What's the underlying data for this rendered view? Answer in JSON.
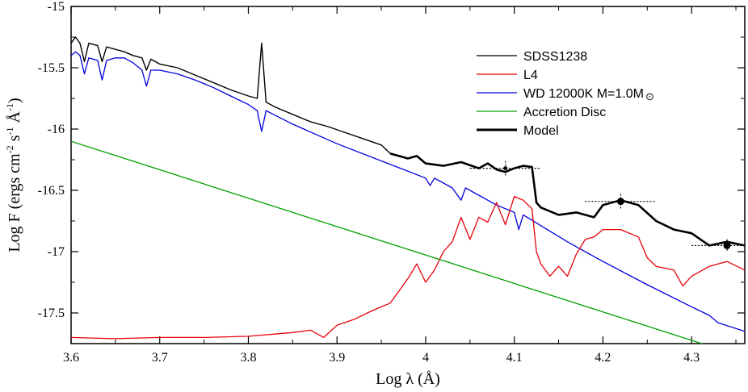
{
  "chart_data": {
    "type": "line",
    "title": "",
    "xlabel_prefix": "Log ",
    "xlabel_symbol": "λ",
    "xlabel_unit": " (Å)",
    "ylabel_main": "Log F (ergs  cm",
    "ylabel_sup1": "-2",
    "ylabel_mid1": " s",
    "ylabel_sup2": "-1",
    "ylabel_mid2": " Å",
    "ylabel_sup3": "-1",
    "ylabel_end": ")",
    "xlim": [
      3.6,
      4.36
    ],
    "ylim": [
      -17.75,
      -15
    ],
    "xticks": [
      "3.6",
      "3.7",
      "3.8",
      "3.9",
      "4",
      "4.1",
      "4.2",
      "4.3"
    ],
    "xtick_values": [
      3.6,
      3.7,
      3.8,
      3.9,
      4.0,
      4.1,
      4.2,
      4.3
    ],
    "yticks": [
      "-15",
      "-15.5",
      "-16",
      "-16.5",
      "-17",
      "-17.5"
    ],
    "ytick_values": [
      -15,
      -15.5,
      -16,
      -16.5,
      -17,
      -17.5
    ],
    "legend_position": "top-right",
    "legend": [
      {
        "label": "SDSS1238",
        "color": "#000000",
        "width": 1
      },
      {
        "label": "L4",
        "color": "#e8000b",
        "width": 1
      },
      {
        "label": "WD 12000K M=1.0M",
        "suffix": "⊙",
        "color": "#0000e0",
        "width": 1
      },
      {
        "label": "Accretion Disc",
        "color": "#00a000",
        "width": 1
      },
      {
        "label": "Model",
        "color": "#000000",
        "width": 2.5
      }
    ],
    "series": [
      {
        "name": "SDSS1238",
        "color": "#000000",
        "x": [
          3.6,
          3.605,
          3.61,
          3.615,
          3.62,
          3.63,
          3.635,
          3.64,
          3.65,
          3.66,
          3.67,
          3.68,
          3.685,
          3.69,
          3.7,
          3.72,
          3.74,
          3.76,
          3.78,
          3.8,
          3.81,
          3.815,
          3.82,
          3.83,
          3.85,
          3.87,
          3.89,
          3.91,
          3.93,
          3.95,
          3.96
        ],
        "y": [
          -15.3,
          -15.25,
          -15.3,
          -15.45,
          -15.3,
          -15.32,
          -15.45,
          -15.33,
          -15.35,
          -15.37,
          -15.4,
          -15.42,
          -15.52,
          -15.43,
          -15.47,
          -15.5,
          -15.56,
          -15.62,
          -15.68,
          -15.73,
          -15.75,
          -15.3,
          -15.78,
          -15.82,
          -15.88,
          -15.94,
          -15.98,
          -16.03,
          -16.08,
          -16.13,
          -16.2
        ]
      },
      {
        "name": "Model",
        "color": "#000000",
        "x": [
          3.96,
          3.97,
          3.98,
          3.99,
          4.0,
          4.02,
          4.04,
          4.06,
          4.07,
          4.08,
          4.09,
          4.1,
          4.11,
          4.12,
          4.125,
          4.13,
          4.15,
          4.17,
          4.19,
          4.2,
          4.22,
          4.24,
          4.26,
          4.28,
          4.3,
          4.32,
          4.34,
          4.36
        ],
        "y": [
          -16.2,
          -16.22,
          -16.24,
          -16.22,
          -16.28,
          -16.3,
          -16.27,
          -16.32,
          -16.28,
          -16.33,
          -16.35,
          -16.32,
          -16.3,
          -16.31,
          -16.6,
          -16.64,
          -16.7,
          -16.68,
          -16.72,
          -16.62,
          -16.58,
          -16.62,
          -16.75,
          -16.82,
          -16.85,
          -16.95,
          -16.92,
          -16.95
        ]
      },
      {
        "name": "WD 12000K M=1.0M⊙",
        "color": "#0000e0",
        "x": [
          3.6,
          3.605,
          3.61,
          3.615,
          3.62,
          3.63,
          3.635,
          3.64,
          3.65,
          3.66,
          3.67,
          3.68,
          3.685,
          3.69,
          3.7,
          3.72,
          3.74,
          3.76,
          3.78,
          3.8,
          3.81,
          3.815,
          3.82,
          3.85,
          3.9,
          3.95,
          4.0,
          4.005,
          4.01,
          4.03,
          4.04,
          4.045,
          4.08,
          4.1,
          4.105,
          4.11,
          4.16,
          4.2,
          4.25,
          4.3,
          4.32,
          4.33,
          4.36
        ],
        "y": [
          -15.4,
          -15.37,
          -15.4,
          -15.55,
          -15.42,
          -15.44,
          -15.6,
          -15.44,
          -15.42,
          -15.42,
          -15.46,
          -15.52,
          -15.65,
          -15.52,
          -15.52,
          -15.55,
          -15.6,
          -15.66,
          -15.73,
          -15.8,
          -15.85,
          -16.02,
          -15.85,
          -15.96,
          -16.12,
          -16.26,
          -16.4,
          -16.46,
          -16.4,
          -16.48,
          -16.58,
          -16.48,
          -16.62,
          -16.68,
          -16.82,
          -16.7,
          -16.92,
          -17.08,
          -17.27,
          -17.45,
          -17.52,
          -17.58,
          -17.65
        ]
      },
      {
        "name": "L4",
        "color": "#e8000b",
        "x": [
          3.6,
          3.65,
          3.7,
          3.75,
          3.8,
          3.85,
          3.87,
          3.885,
          3.9,
          3.92,
          3.94,
          3.96,
          3.98,
          3.99,
          4.0,
          4.01,
          4.02,
          4.03,
          4.04,
          4.05,
          4.06,
          4.07,
          4.08,
          4.09,
          4.1,
          4.11,
          4.12,
          4.125,
          4.13,
          4.14,
          4.15,
          4.16,
          4.17,
          4.18,
          4.19,
          4.2,
          4.22,
          4.24,
          4.25,
          4.26,
          4.28,
          4.29,
          4.3,
          4.32,
          4.34,
          4.36
        ],
        "y": [
          -17.7,
          -17.71,
          -17.7,
          -17.7,
          -17.69,
          -17.66,
          -17.64,
          -17.7,
          -17.6,
          -17.55,
          -17.48,
          -17.42,
          -17.22,
          -17.1,
          -17.25,
          -17.15,
          -17.0,
          -16.92,
          -16.72,
          -16.9,
          -16.72,
          -16.76,
          -16.6,
          -16.78,
          -16.55,
          -16.58,
          -16.65,
          -17.0,
          -17.1,
          -17.2,
          -17.12,
          -17.2,
          -17.02,
          -16.9,
          -16.88,
          -16.82,
          -16.82,
          -16.88,
          -17.05,
          -17.12,
          -17.15,
          -17.28,
          -17.2,
          -17.12,
          -17.08,
          -17.15
        ]
      },
      {
        "name": "Accretion Disc",
        "color": "#00a000",
        "x": [
          3.6,
          4.32
        ],
        "y": [
          -16.1,
          -17.77
        ]
      }
    ],
    "markers": [
      {
        "x": 4.09,
        "y": -16.32,
        "xerr": 0.04,
        "yerr": 0.06,
        "size": "small"
      },
      {
        "x": 4.22,
        "y": -16.59,
        "xerr": 0.04,
        "yerr": 0.06,
        "size": "large"
      },
      {
        "x": 4.34,
        "y": -16.95,
        "xerr": 0.04,
        "yerr": 0.05,
        "size": "large"
      }
    ]
  }
}
